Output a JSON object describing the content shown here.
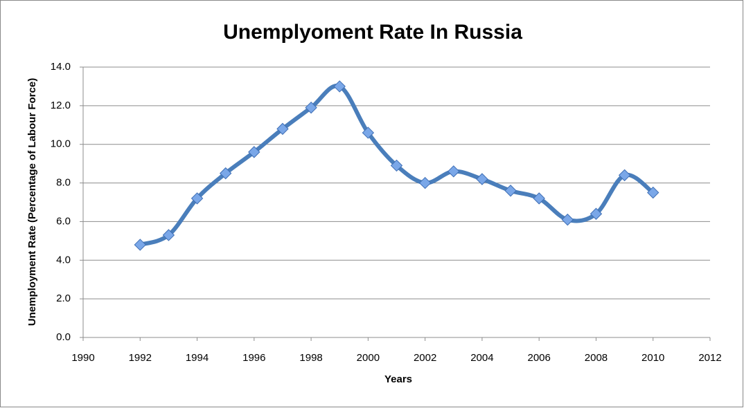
{
  "chart_data": {
    "type": "line",
    "title": "Unemplyoment Rate In Russia",
    "x_label": "Years",
    "y_label": "Unemployment Rate (Percentage of Labour Force)",
    "x": [
      1992,
      1993,
      1994,
      1995,
      1996,
      1997,
      1998,
      1999,
      2000,
      2001,
      2002,
      2003,
      2004,
      2005,
      2006,
      2007,
      2008,
      2009,
      2010
    ],
    "series": [
      {
        "color": "#4a7ebb",
        "values": [
          4.8,
          5.3,
          7.2,
          8.5,
          9.6,
          10.8,
          11.9,
          13.0,
          10.6,
          8.9,
          8.0,
          8.6,
          8.2,
          7.6,
          7.2,
          6.1,
          6.4,
          8.4,
          7.5
        ]
      }
    ],
    "xlim": [
      1990,
      2012
    ],
    "xticks": [
      1990,
      1992,
      1994,
      1996,
      1998,
      2000,
      2002,
      2004,
      2006,
      2008,
      2010,
      2012
    ],
    "ylim": [
      0,
      14
    ],
    "yticks": [
      {
        "value": 0,
        "label": "0.0"
      },
      {
        "value": 2,
        "label": "2.0"
      },
      {
        "value": 4,
        "label": "4.0"
      },
      {
        "value": 6,
        "label": "6.0"
      },
      {
        "value": 8,
        "label": "8.0"
      },
      {
        "value": 10,
        "label": "10.0"
      },
      {
        "value": 12,
        "label": "12.0"
      },
      {
        "value": 14,
        "label": "14.0"
      }
    ],
    "grid": true,
    "smooth": true
  }
}
